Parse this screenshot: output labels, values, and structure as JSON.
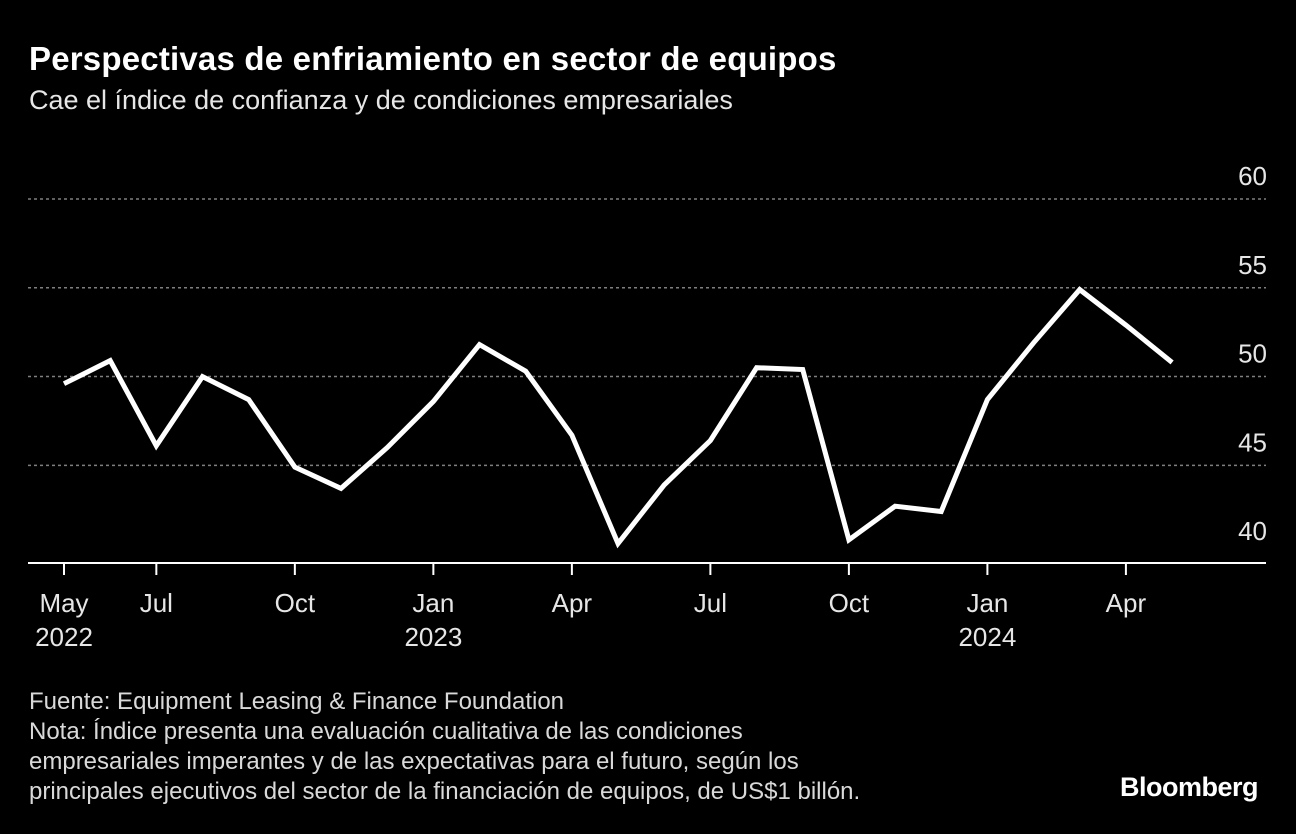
{
  "title": "Perspectivas de enfriamiento en sector de equipos",
  "subtitle": "Cae el índice de confianza y de condiciones empresariales",
  "footnote": {
    "source": "Fuente: Equipment Leasing & Finance Foundation",
    "note_lines": [
      "Nota: Índice presenta una evaluación cualitativa de las condiciones",
      "empresariales imperantes y de las expectativas para el futuro, según los",
      "principales ejecutivos del sector de la financiación de equipos, de US$1 billón."
    ]
  },
  "brand": "Bloomberg",
  "colors": {
    "background": "#000000",
    "line": "#ffffff",
    "grid": "#7f7f7f",
    "text": "#e6e6e6"
  },
  "chart_data": {
    "type": "line",
    "x": [
      "2022-05",
      "2022-06",
      "2022-07",
      "2022-08",
      "2022-09",
      "2022-10",
      "2022-11",
      "2022-12",
      "2023-01",
      "2023-02",
      "2023-03",
      "2023-04",
      "2023-05",
      "2023-06",
      "2023-07",
      "2023-08",
      "2023-09",
      "2023-10",
      "2023-11",
      "2023-12",
      "2024-01",
      "2024-02",
      "2024-03",
      "2024-04",
      "2024-05"
    ],
    "series": [
      {
        "values": [
          49.6,
          50.9,
          46.1,
          50.0,
          48.7,
          44.9,
          43.7,
          46.0,
          48.6,
          51.8,
          50.3,
          46.7,
          40.6,
          43.9,
          46.4,
          50.5,
          50.4,
          40.8,
          42.7,
          42.4,
          48.7,
          51.9,
          54.9,
          52.9,
          50.8
        ]
      }
    ],
    "ylim": [
      39.5,
      60
    ],
    "y_ticks": [
      "40",
      "45",
      "50",
      "55",
      "60"
    ],
    "y_tick_values": [
      40,
      45,
      50,
      55,
      60
    ],
    "x_ticks": [
      {
        "x": "2022-05",
        "label": "May",
        "year": "2022"
      },
      {
        "x": "2022-07",
        "label": "Jul",
        "year": ""
      },
      {
        "x": "2022-10",
        "label": "Oct",
        "year": ""
      },
      {
        "x": "2023-01",
        "label": "Jan",
        "year": "2023"
      },
      {
        "x": "2023-04",
        "label": "Apr",
        "year": ""
      },
      {
        "x": "2023-07",
        "label": "Jul",
        "year": ""
      },
      {
        "x": "2023-10",
        "label": "Oct",
        "year": ""
      },
      {
        "x": "2024-01",
        "label": "Jan",
        "year": "2024"
      },
      {
        "x": "2024-04",
        "label": "Apr",
        "year": ""
      }
    ],
    "grid": true,
    "y_axis_side": "right"
  }
}
